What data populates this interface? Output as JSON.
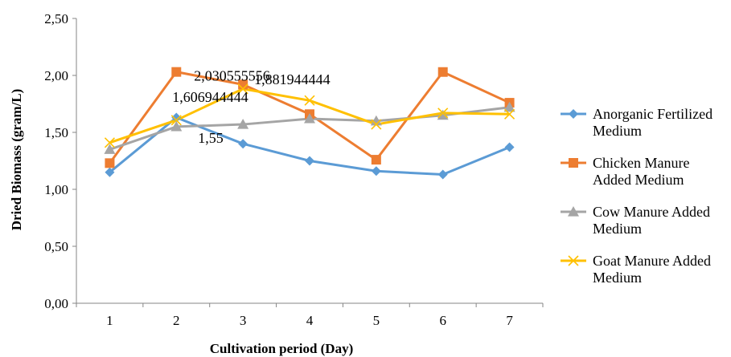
{
  "chart_data": {
    "type": "line",
    "title": "",
    "xlabel": "Cultivation period (Day)",
    "ylabel": "Dried Biomass (gram/L)",
    "categories": [
      "1",
      "2",
      "3",
      "4",
      "5",
      "6",
      "7"
    ],
    "y_ticks": [
      "0,00",
      "0,50",
      "1,00",
      "1,50",
      "2,00",
      "2,50"
    ],
    "ylim": [
      0,
      2.5
    ],
    "grid": false,
    "legend_position": "right",
    "series": [
      {
        "name_lines": [
          "Anorganic Fertilized",
          "Medium"
        ],
        "color": "#5B9BD5",
        "marker": "diamond",
        "values": [
          1.15,
          1.63,
          1.4,
          1.25,
          1.16,
          1.13,
          1.37
        ]
      },
      {
        "name_lines": [
          "Chicken Manure",
          "Added Medium"
        ],
        "color": "#ED7D31",
        "marker": "square",
        "values": [
          1.23,
          2.030555556,
          1.92,
          1.66,
          1.26,
          2.03,
          1.76
        ]
      },
      {
        "name_lines": [
          "Cow Manure Added",
          "Medium"
        ],
        "color": "#A5A5A5",
        "marker": "triangle",
        "values": [
          1.35,
          1.55,
          1.57,
          1.62,
          1.6,
          1.65,
          1.72
        ]
      },
      {
        "name_lines": [
          "Goat Manure Added",
          "Medium"
        ],
        "color": "#FFC000",
        "marker": "x",
        "values": [
          1.41,
          1.606944444,
          1.881944444,
          1.78,
          1.57,
          1.67,
          1.66
        ]
      }
    ],
    "data_labels": [
      {
        "text": "1,55",
        "series": 2,
        "index": 1
      },
      {
        "text": "2,030555556",
        "series": 1,
        "index": 1
      },
      {
        "text": "1,606944444",
        "series": 3,
        "index": 1
      },
      {
        "text": "1,881944444",
        "series": 3,
        "index": 2
      }
    ]
  }
}
